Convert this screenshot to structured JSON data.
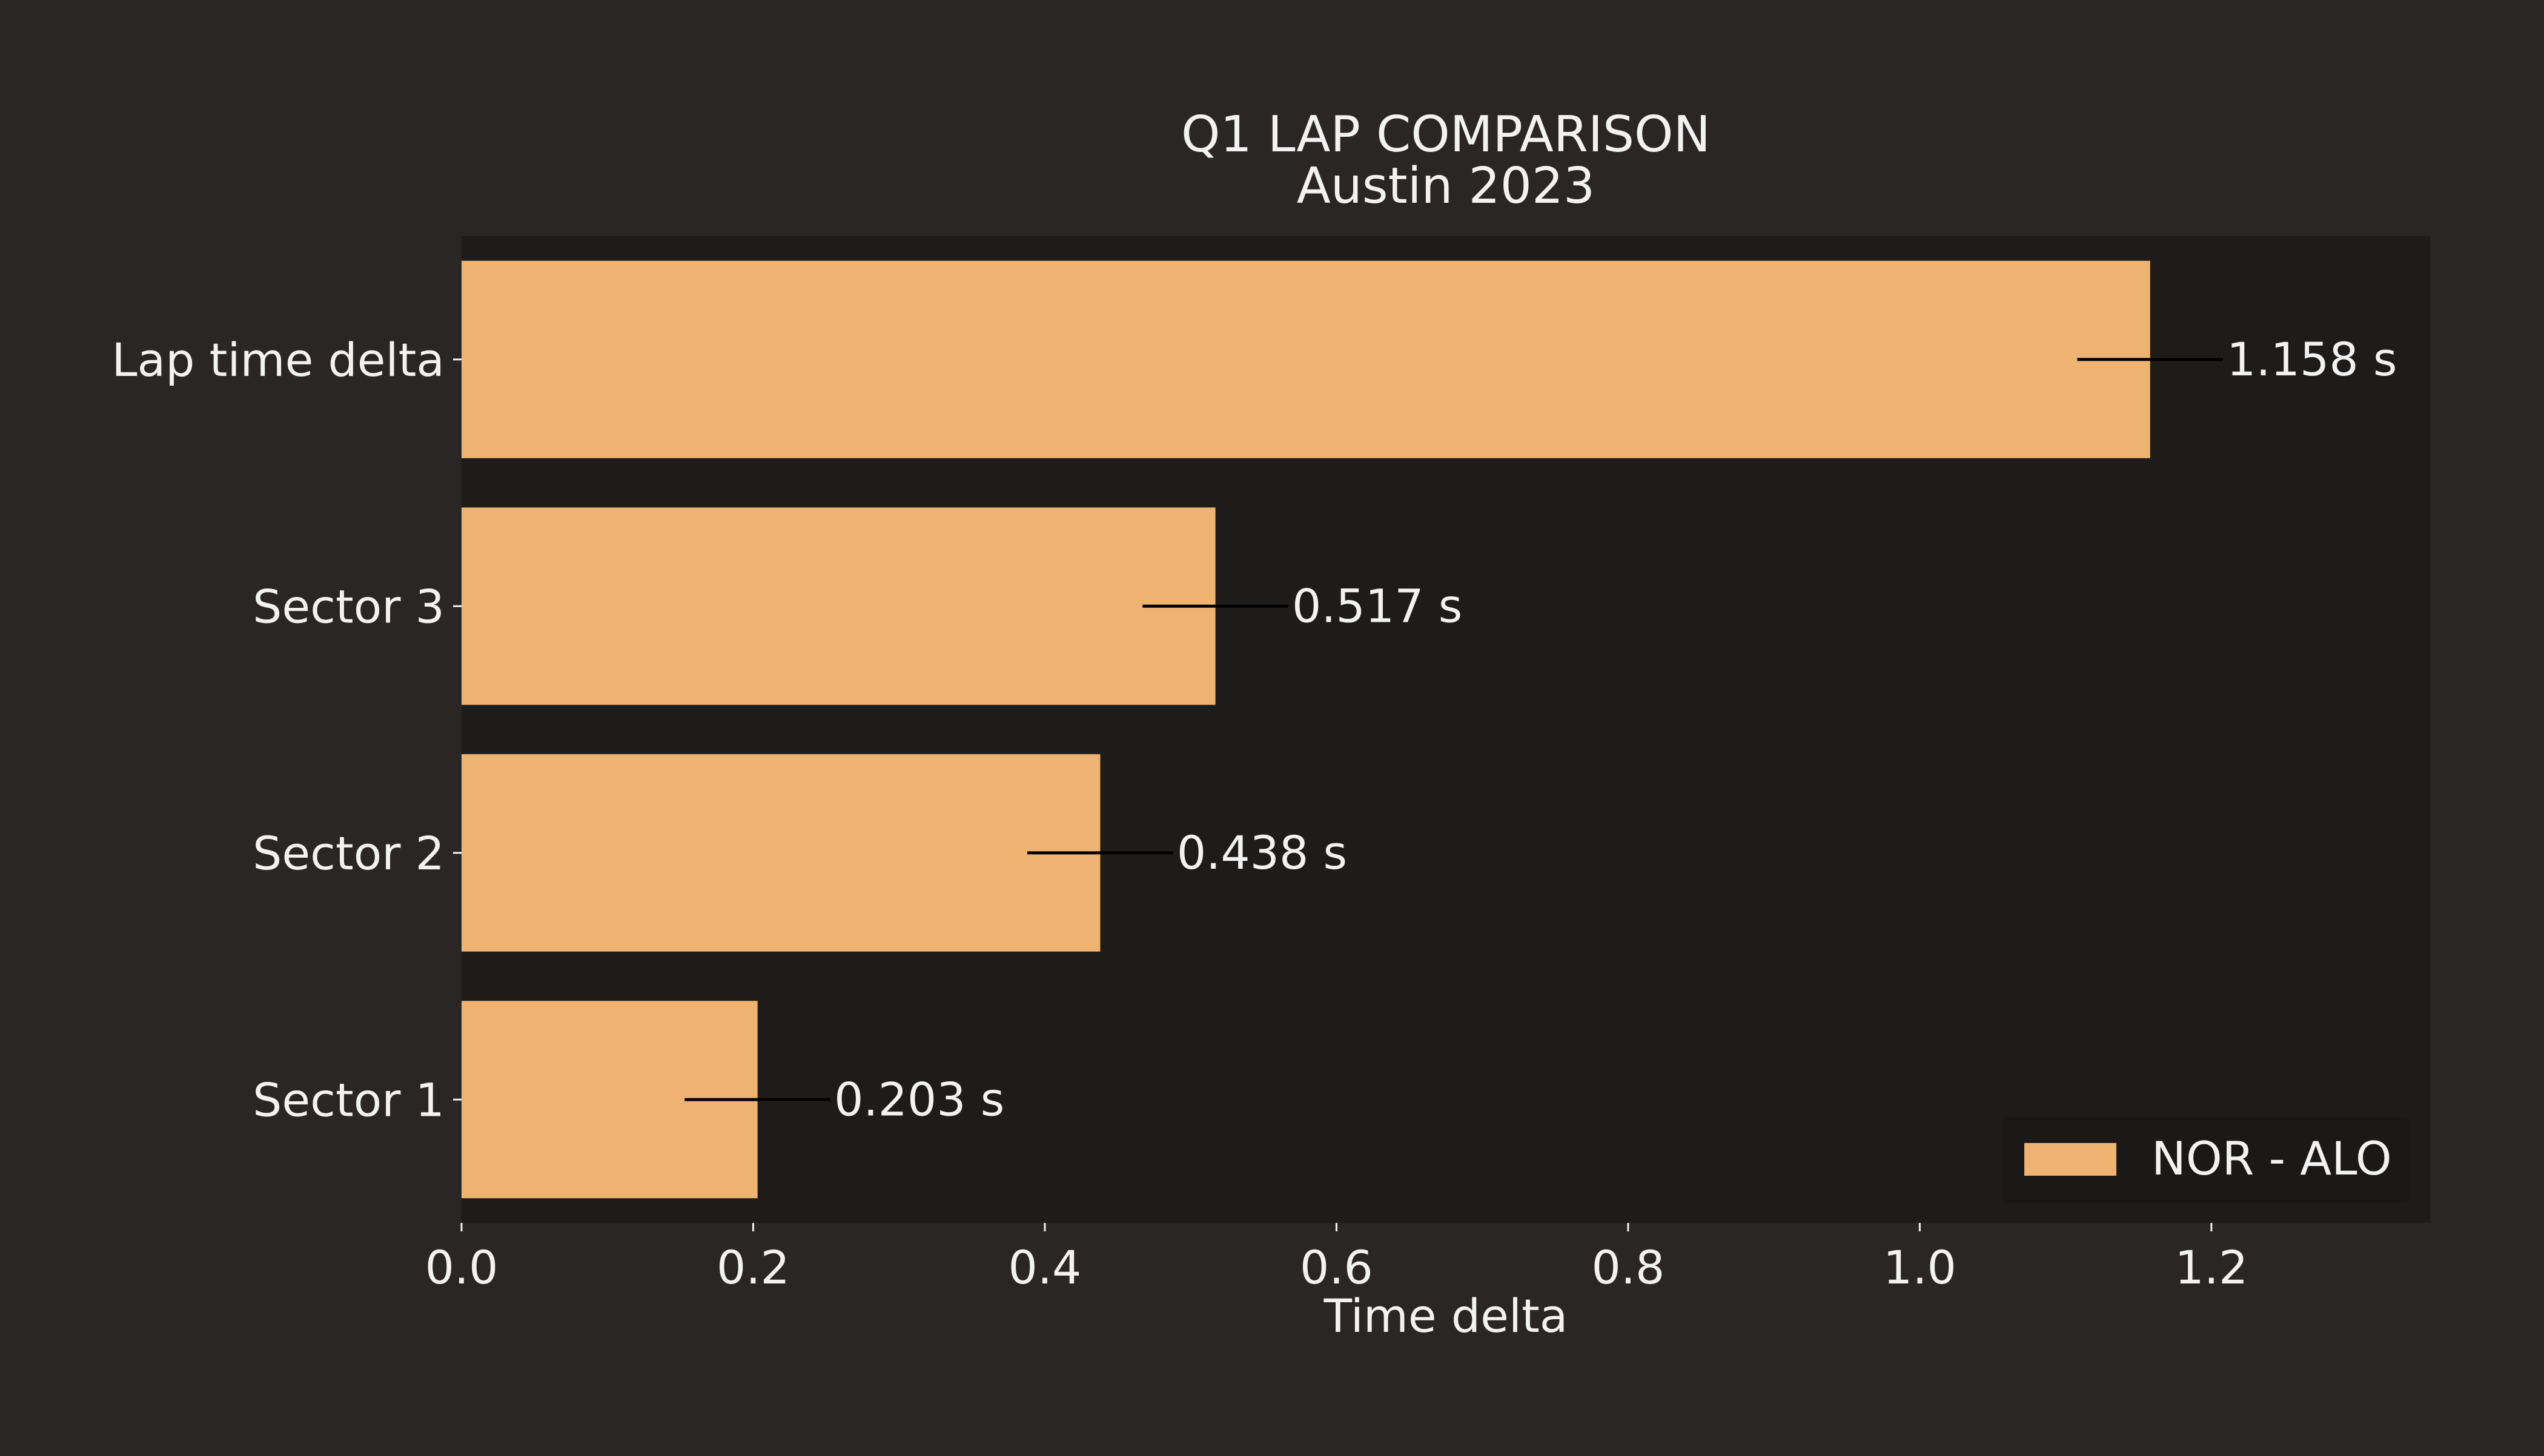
{
  "chart_data": {
    "type": "bar",
    "orientation": "horizontal",
    "title": "Q1 LAP COMPARISON",
    "subtitle": "Austin 2023",
    "xlabel": "Time delta",
    "ylabel": "",
    "xlim": [
      0,
      1.35
    ],
    "xticks": [
      0.0,
      0.2,
      0.4,
      0.6,
      0.8,
      1.0,
      1.2
    ],
    "xtick_labels": [
      "0.0",
      "0.2",
      "0.4",
      "0.6",
      "0.8",
      "1.0",
      "1.2"
    ],
    "categories": [
      "Lap time delta",
      "Sector 3",
      "Sector 2",
      "Sector 1"
    ],
    "series": [
      {
        "name": "NOR - ALO",
        "values": [
          1.158,
          0.517,
          0.438,
          0.203
        ],
        "value_labels": [
          "1.158 s",
          "0.517 s",
          "0.438 s",
          "0.203 s"
        ],
        "error": [
          0.05,
          0.05,
          0.05,
          0.05
        ],
        "color": "#efb371"
      }
    ],
    "legend": {
      "position": "bottom-right",
      "entries": [
        "NOR - ALO"
      ]
    },
    "grid": false,
    "colors": {
      "background": "#292625",
      "plot_background": "#1d1c1b",
      "text": "#f2f2f2",
      "error_bar": "#000000",
      "legend_background": "#1a1918"
    }
  }
}
